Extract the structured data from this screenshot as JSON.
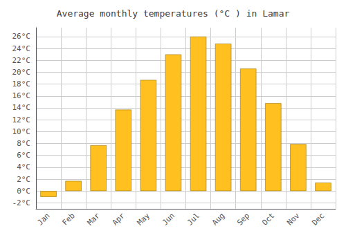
{
  "chart_data": {
    "type": "bar",
    "title": "Average monthly temperatures (°C ) in Lamar",
    "categories": [
      "Jan",
      "Feb",
      "Mar",
      "Apr",
      "May",
      "Jun",
      "Jul",
      "Aug",
      "Sep",
      "Oct",
      "Nov",
      "Dec"
    ],
    "values": [
      -1.0,
      1.7,
      7.7,
      13.7,
      18.7,
      23.0,
      26.0,
      24.8,
      20.6,
      14.8,
      7.9,
      1.4
    ],
    "color": "#FFC020",
    "ylim": [
      -3,
      27.5
    ],
    "yticks": [
      {
        "value": -2,
        "label": "-2°C"
      },
      {
        "value": 0,
        "label": "0°C"
      },
      {
        "value": 2,
        "label": "2°C"
      },
      {
        "value": 4,
        "label": "4°C"
      },
      {
        "value": 6,
        "label": "6°C"
      },
      {
        "value": 8,
        "label": "8°C"
      },
      {
        "value": 10,
        "label": "10°C"
      },
      {
        "value": 12,
        "label": "12°C"
      },
      {
        "value": 14,
        "label": "14°C"
      },
      {
        "value": 16,
        "label": "16°C"
      },
      {
        "value": 18,
        "label": "18°C"
      },
      {
        "value": 20,
        "label": "20°C"
      },
      {
        "value": 22,
        "label": "22°C"
      },
      {
        "value": 24,
        "label": "24°C"
      },
      {
        "value": 26,
        "label": "26°C"
      }
    ],
    "grid": true
  }
}
